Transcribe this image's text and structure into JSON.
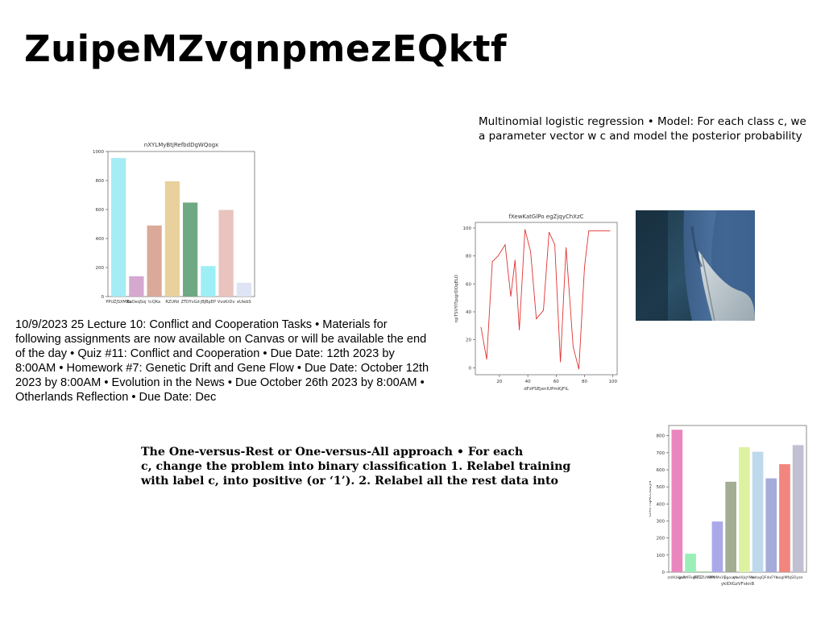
{
  "slide": {
    "title": "ZuipeMZvqnpmezEQktf",
    "text_right_top": [
      "Multinomial logistic regression • Model: For each class c, we",
      "a parameter vector w c and model the posterior probability"
    ],
    "text_left_middle": "10/9/2023 25 Lecture 10: Conflict and Cooperation Tasks • Materials for following assignments are now available on Canvas or will be available the end of the day • Quiz #11: Conflict and Cooperation • Due Date: 12th 2023 by 8:00AM • Homework #7: Genetic Drift and Gene Flow • Due Date: October 12th 2023 by 8:00AM • Evolution in the News • Due October 26th 2023 by 8:00AM • Otherlands Reflection • Due Date: Dec",
    "text_bottom": [
      "The One-versus-Rest or One-versus-All approach • For each",
      "c, change the problem into binary classification 1. Relabel training",
      "with label c, into positive (or ‘1’). 2. Relabel all the rest data into"
    ]
  },
  "chart_data": [
    {
      "type": "bar",
      "title": "nXYLMyBtjRefbdDgWQogx",
      "xlabel": "",
      "ylabel": "",
      "categories": [
        "PPUZJSXMKu",
        "BaOeqSoj",
        "tcQKa",
        "RZUfbl",
        "ZTDYvGd",
        "jBJBpEP",
        "VvoKrDv",
        "eUIebS"
      ],
      "values": [
        955,
        140,
        490,
        795,
        648,
        210,
        597,
        95
      ],
      "colors": [
        "#a6ecf5",
        "#d5a8d0",
        "#dba99a",
        "#e8d19c",
        "#6fa983",
        "#9eeef5",
        "#e9c3bd",
        "#dee4f4"
      ],
      "ylim": [
        0,
        1000
      ],
      "yticks": [
        0,
        200,
        400,
        600,
        800,
        1000
      ]
    },
    {
      "type": "line",
      "title": "fXewKatGlPo egZjqyChXzC",
      "xlabel": "dFzPSEjenIUPmKjFIL",
      "ylabel": "npTSVYITpqjrDOqELO",
      "x": [
        7,
        11,
        15,
        19,
        24,
        28,
        31,
        34,
        38,
        42,
        46,
        51,
        55,
        59,
        63,
        67,
        72,
        76,
        80,
        83,
        86,
        89,
        93,
        98
      ],
      "y": [
        29,
        6,
        76,
        80,
        88,
        51,
        77,
        27,
        99,
        83,
        35,
        41,
        97,
        88,
        4,
        86,
        15,
        -1,
        72,
        98,
        98,
        98,
        98,
        98
      ],
      "color": "#e03232",
      "xlim": [
        3,
        103
      ],
      "ylim": [
        -5,
        104
      ],
      "xticks": [
        20,
        40,
        60,
        80,
        100
      ],
      "yticks": [
        0,
        20,
        40,
        60,
        80,
        100
      ]
    },
    {
      "type": "bar",
      "title": "",
      "xlabel": "ykIDIGzVFsknB",
      "ylabel": "OMYTqAcCloZjN",
      "categories": [
        "zdAUkjeAr",
        "gnAXFkgNTC",
        "IFTCZUMPM",
        "HPdMvVE",
        "pgooyh",
        "mwHlJqYMkr",
        "enlogQ",
        "FdoFYn",
        "lsoglMfqS",
        "Oyze"
      ],
      "values": [
        835,
        108,
        5,
        297,
        530,
        733,
        706,
        550,
        633,
        745
      ],
      "colors": [
        "#e986bd",
        "#9aefb8",
        "#a0dfa0",
        "#a9a9ea",
        "#a3ad94",
        "#dcf2a1",
        "#bfd9ec",
        "#a6acd9",
        "#f2867e",
        "#c0c0d2"
      ],
      "ylim": [
        0,
        860
      ],
      "yticks": [
        0,
        100,
        200,
        300,
        400,
        500,
        600,
        700,
        800
      ]
    }
  ]
}
